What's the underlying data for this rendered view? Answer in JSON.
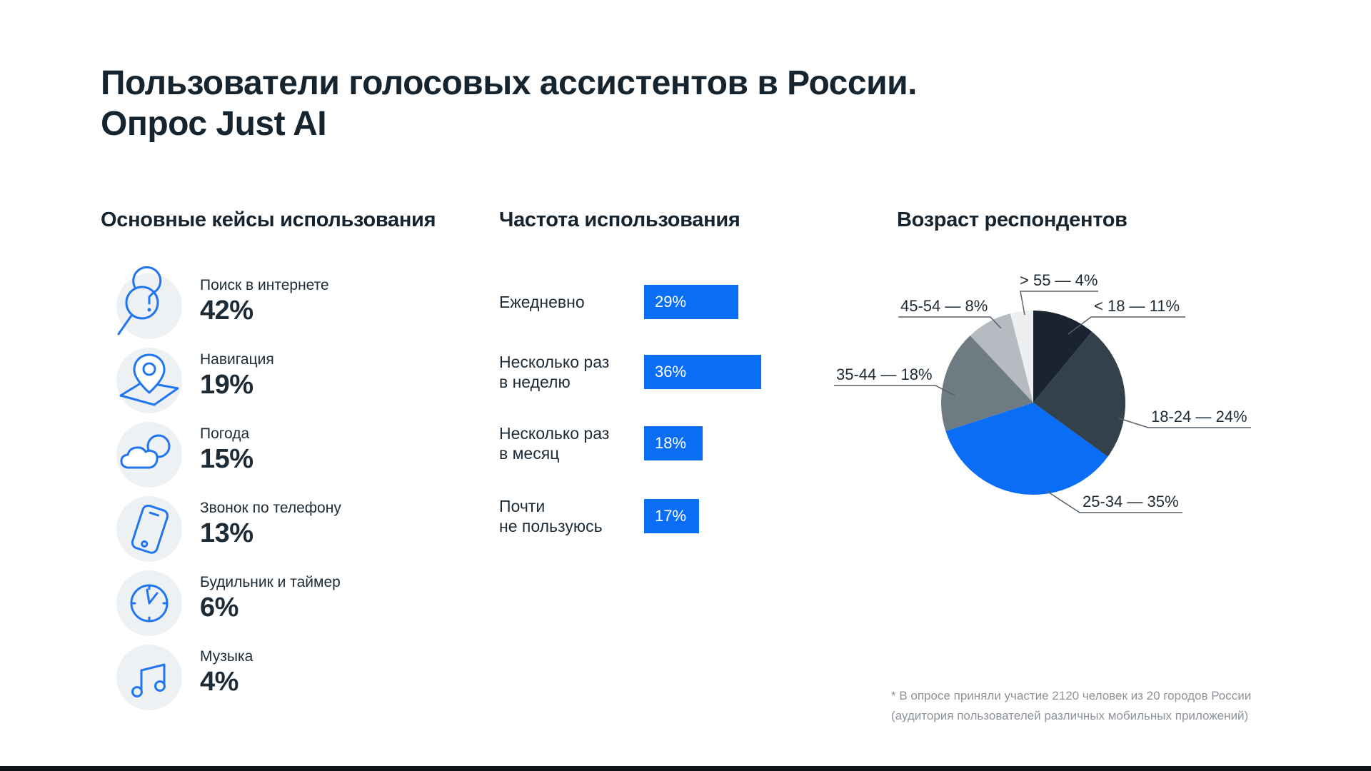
{
  "title": {
    "line1": "Пользователи голосовых ассистентов в России.",
    "line2": "Опрос Just AI"
  },
  "colors": {
    "accent_blue": "#0a6df5",
    "icon_blue": "#2176f0",
    "dark_text": "#16242f",
    "body_text": "#1d2b36",
    "muted_text": "#8d9399",
    "icon_circle_bg": "#edf1f4",
    "bottom_bar": "#0d151b"
  },
  "use_cases": {
    "heading": "Основные кейсы использования",
    "items": [
      {
        "icon": "search-icon",
        "label": "Поиск в интернете",
        "value": "42%"
      },
      {
        "icon": "navigation-icon",
        "label": "Навигация",
        "value": "19%"
      },
      {
        "icon": "weather-icon",
        "label": "Погода",
        "value": "15%"
      },
      {
        "icon": "phone-icon",
        "label": "Звонок по телефону",
        "value": "13%"
      },
      {
        "icon": "alarm-icon",
        "label": "Будильник и таймер",
        "value": "6%"
      },
      {
        "icon": "music-icon",
        "label": "Музыка",
        "value": "4%"
      }
    ]
  },
  "frequency": {
    "heading": "Частота использования",
    "bars": [
      {
        "label": "Ежедневно",
        "value": 29,
        "display": "29%"
      },
      {
        "label": "Несколько раз\nв неделю",
        "value": 36,
        "display": "36%"
      },
      {
        "label": "Несколько раз\nв месяц",
        "value": 18,
        "display": "18%"
      },
      {
        "label": "Почти\nне пользуюсь",
        "value": 17,
        "display": "17%"
      }
    ]
  },
  "age": {
    "heading": "Возраст респондентов",
    "slices": [
      {
        "id": "under-18",
        "range": "< 18",
        "value": 11,
        "color": "#1a2430",
        "label": "< 18 — 11%"
      },
      {
        "id": "18-24",
        "range": "18-24",
        "value": 24,
        "color": "#32414b",
        "label": "18-24 — 24%"
      },
      {
        "id": "25-34",
        "range": "25-34",
        "value": 35,
        "color": "#0a6df5",
        "label": "25-34 — 35%"
      },
      {
        "id": "35-44",
        "range": "35-44",
        "value": 18,
        "color": "#6f7b83",
        "label": "35-44 — 18%"
      },
      {
        "id": "45-54",
        "range": "45-54",
        "value": 8,
        "color": "#b5bbc0",
        "label": "45-54 — 8%"
      },
      {
        "id": "over-55",
        "range": "> 55",
        "value": 4,
        "color": "#edeff1",
        "label": "> 55 — 4%"
      }
    ]
  },
  "footnote": {
    "line1": "* В опросе приняли участие 2120 человек из 20 городов России",
    "line2": "(аудитория пользователей различных мобильных приложений)"
  },
  "chart_data": [
    {
      "type": "bar",
      "title": "Частота использования",
      "orientation": "horizontal",
      "categories": [
        "Ежедневно",
        "Несколько раз в неделю",
        "Несколько раз в месяц",
        "Почти не пользуюсь"
      ],
      "values": [
        29,
        36,
        18,
        17
      ],
      "value_labels": [
        "29%",
        "36%",
        "18%",
        "17%"
      ],
      "unit": "%",
      "bar_color": "#0a6df5",
      "grid": false,
      "legend": false
    },
    {
      "type": "pie",
      "title": "Возраст респондентов",
      "categories": [
        "< 18",
        "18-24",
        "25-34",
        "35-44",
        "45-54",
        "> 55"
      ],
      "values": [
        11,
        24,
        35,
        18,
        8,
        4
      ],
      "labels": [
        "< 18 — 11%",
        "18-24 — 24%",
        "25-34 — 35%",
        "35-44 — 18%",
        "45-54 — 8%",
        "> 55 — 4%"
      ],
      "colors": [
        "#1a2430",
        "#32414b",
        "#0a6df5",
        "#6f7b83",
        "#b5bbc0",
        "#edeff1"
      ],
      "start_angle_deg": 0,
      "direction": "clockwise",
      "legend": false
    },
    {
      "type": "table",
      "title": "Основные кейсы использования",
      "categories": [
        "Поиск в интернете",
        "Навигация",
        "Погода",
        "Звонок по телефону",
        "Будильник и таймер",
        "Музыка"
      ],
      "values": [
        42,
        19,
        15,
        13,
        6,
        4
      ],
      "unit": "%"
    }
  ]
}
